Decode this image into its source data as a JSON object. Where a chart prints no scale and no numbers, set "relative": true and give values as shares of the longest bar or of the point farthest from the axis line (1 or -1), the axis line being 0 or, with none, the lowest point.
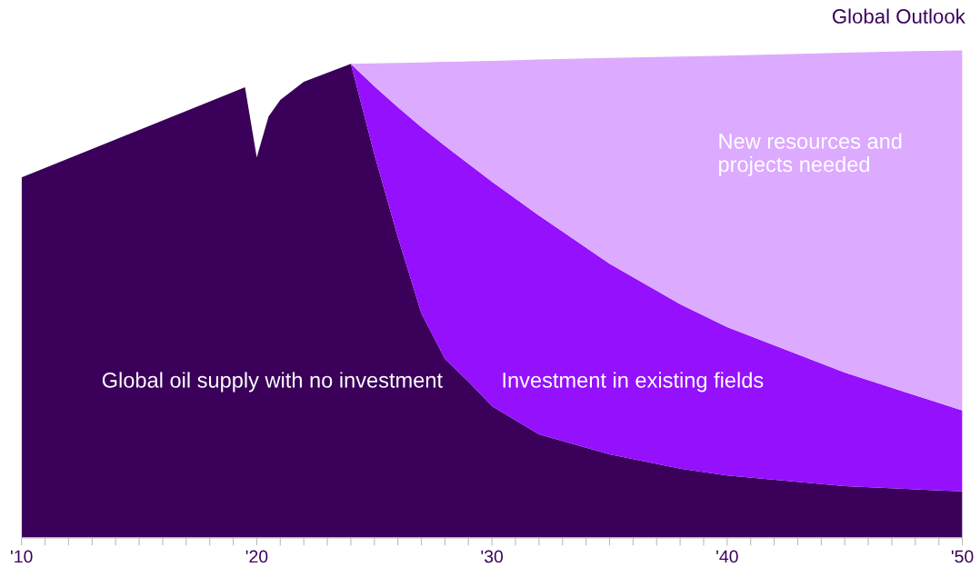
{
  "chart_data": {
    "type": "area",
    "title": "Global Outlook",
    "stacked": true,
    "relative": true,
    "grid": false,
    "legend": false,
    "x": [
      2010,
      2019.5,
      2020,
      2020.5,
      2021,
      2022,
      2024,
      2025,
      2026,
      2027,
      2028,
      2029,
      2030,
      2032,
      2035,
      2038,
      2040,
      2045,
      2050
    ],
    "series": [
      {
        "name": "Global oil supply with no investment",
        "color": "#3a005a",
        "values": [
          0.739,
          0.924,
          0.78,
          0.864,
          0.898,
          0.935,
          0.972,
          0.786,
          0.616,
          0.46,
          0.367,
          0.32,
          0.27,
          0.212,
          0.171,
          0.142,
          0.128,
          0.106,
          0.095
        ]
      },
      {
        "name": "Investment in existing fields",
        "color": "#9510fc",
        "values": [
          null,
          null,
          null,
          null,
          null,
          null,
          0,
          0.14,
          0.267,
          0.382,
          0.437,
          0.447,
          0.46,
          0.449,
          0.391,
          0.337,
          0.304,
          0.233,
          0.166
        ]
      },
      {
        "name": "New resources and projects needed",
        "color": "#dcaaff",
        "values": [
          null,
          null,
          null,
          null,
          null,
          null,
          0,
          0.047,
          0.091,
          0.133,
          0.172,
          0.21,
          0.248,
          0.32,
          0.422,
          0.508,
          0.557,
          0.656,
          0.739
        ]
      }
    ],
    "xlim": [
      2010,
      2050
    ],
    "xticks": [
      {
        "value": 2010,
        "label": "'10"
      },
      {
        "value": 2011,
        "label": null
      },
      {
        "value": 2012,
        "label": null
      },
      {
        "value": 2013,
        "label": null
      },
      {
        "value": 2014,
        "label": null
      },
      {
        "value": 2015,
        "label": null
      },
      {
        "value": 2016,
        "label": null
      },
      {
        "value": 2017,
        "label": null
      },
      {
        "value": 2018,
        "label": null
      },
      {
        "value": 2019,
        "label": null
      },
      {
        "value": 2020,
        "label": "'20"
      },
      {
        "value": 2021,
        "label": null
      },
      {
        "value": 2022,
        "label": null
      },
      {
        "value": 2023,
        "label": null
      },
      {
        "value": 2024,
        "label": null
      },
      {
        "value": 2025,
        "label": null
      },
      {
        "value": 2026,
        "label": null
      },
      {
        "value": 2027,
        "label": null
      },
      {
        "value": 2028,
        "label": null
      },
      {
        "value": 2029,
        "label": null
      },
      {
        "value": 2030,
        "label": "'30"
      },
      {
        "value": 2031,
        "label": null
      },
      {
        "value": 2032,
        "label": null
      },
      {
        "value": 2033,
        "label": null
      },
      {
        "value": 2034,
        "label": null
      },
      {
        "value": 2035,
        "label": null
      },
      {
        "value": 2036,
        "label": null
      },
      {
        "value": 2037,
        "label": null
      },
      {
        "value": 2038,
        "label": null
      },
      {
        "value": 2039,
        "label": null
      },
      {
        "value": 2040,
        "label": "'40"
      },
      {
        "value": 2041,
        "label": null
      },
      {
        "value": 2042,
        "label": null
      },
      {
        "value": 2043,
        "label": null
      },
      {
        "value": 2044,
        "label": null
      },
      {
        "value": 2045,
        "label": null
      },
      {
        "value": 2046,
        "label": null
      },
      {
        "value": 2047,
        "label": null
      },
      {
        "value": 2048,
        "label": null
      },
      {
        "value": 2049,
        "label": null
      },
      {
        "value": 2050,
        "label": "'50"
      }
    ]
  }
}
